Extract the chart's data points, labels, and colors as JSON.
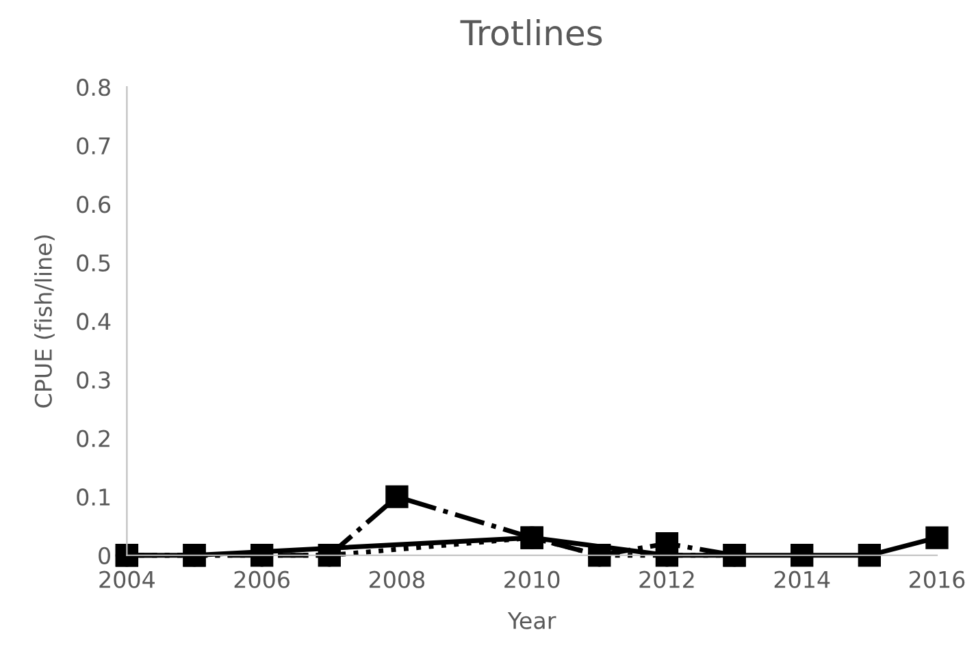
{
  "chart_data": {
    "type": "line",
    "title": "Trotlines",
    "xlabel": "Year",
    "ylabel": "CPUE (fish/line)",
    "series": [
      {
        "color": "#000000",
        "line_style": "solid",
        "marker": "square",
        "x": [
          2004,
          2005,
          2010,
          2012,
          2013,
          2014,
          2015,
          2016
        ],
        "values": [
          0,
          0,
          0.03,
          0,
          0,
          0,
          0,
          0.03
        ]
      },
      {
        "color": "#000000",
        "line_style": "dashdot",
        "marker": "square",
        "x": [
          2004,
          2005,
          2006,
          2007,
          2008,
          2010,
          2011,
          2012,
          2013
        ],
        "values": [
          0,
          0,
          0,
          0,
          0.1,
          0.03,
          0,
          0.02,
          0
        ]
      },
      {
        "color": "#000000",
        "line_style": "dotted",
        "marker": "circle",
        "x": [
          2004,
          2005,
          2006,
          2007,
          2010,
          2011,
          2012,
          2013
        ],
        "values": [
          0,
          0,
          0,
          0,
          0.03,
          0,
          0,
          0
        ]
      }
    ],
    "xlim": [
      2004,
      2016
    ],
    "xticks": [
      2004,
      2006,
      2008,
      2010,
      2012,
      2014,
      2016
    ],
    "ylim": [
      0,
      0.8
    ],
    "yticks": [
      0,
      0.1,
      0.2,
      0.3,
      0.4,
      0.5,
      0.6,
      0.7,
      0.8
    ],
    "grid": false
  }
}
